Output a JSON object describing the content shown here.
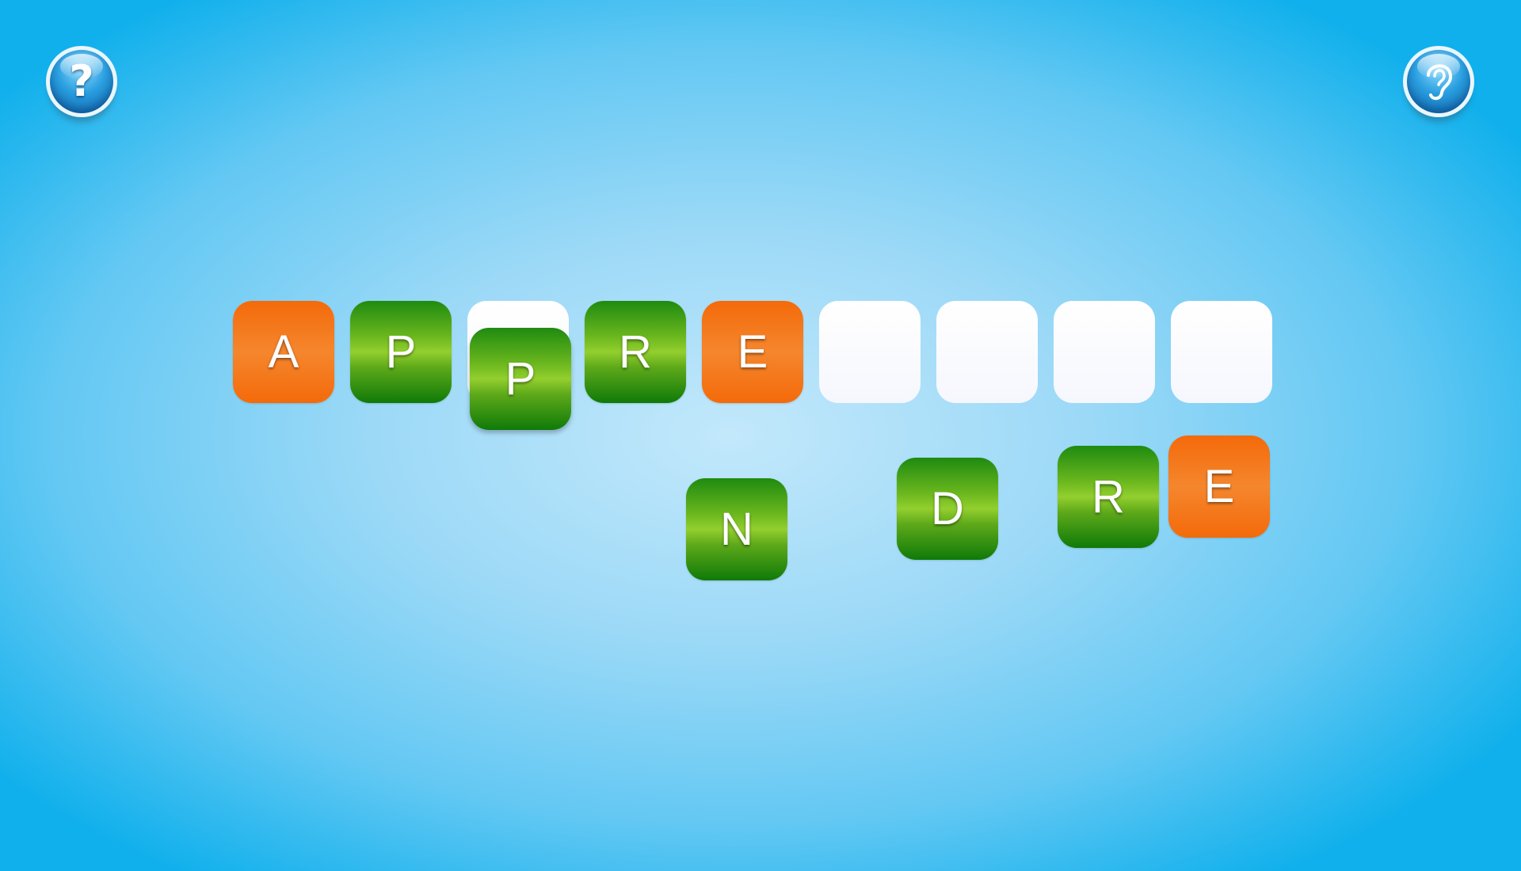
{
  "buttons": {
    "help": {
      "glyph": "?"
    },
    "listen": {
      "glyph": "ear"
    }
  },
  "colors": {
    "green_tile": "#2e9b14",
    "orange_tile": "#f5781a",
    "slot": "#f7f8fd",
    "background": "#8fd3f6"
  },
  "answer_slots": [
    {
      "filled_with": "A",
      "color": "orange"
    },
    {
      "filled_with": "P",
      "color": "green"
    },
    {
      "filled_with": "",
      "color": ""
    },
    {
      "filled_with": "R",
      "color": "green"
    },
    {
      "filled_with": "E",
      "color": "orange"
    },
    {
      "filled_with": "",
      "color": ""
    },
    {
      "filled_with": "",
      "color": ""
    },
    {
      "filled_with": "",
      "color": ""
    },
    {
      "filled_with": "",
      "color": ""
    }
  ],
  "placed_tiles": [
    {
      "letter": "A",
      "color": "orange"
    },
    {
      "letter": "P",
      "color": "green"
    },
    {
      "letter": "R",
      "color": "green"
    },
    {
      "letter": "E",
      "color": "orange"
    }
  ],
  "loose_tiles": [
    {
      "letter": "P",
      "color": "green"
    },
    {
      "letter": "N",
      "color": "green"
    },
    {
      "letter": "D",
      "color": "green"
    },
    {
      "letter": "R",
      "color": "green"
    },
    {
      "letter": "E",
      "color": "orange"
    }
  ]
}
